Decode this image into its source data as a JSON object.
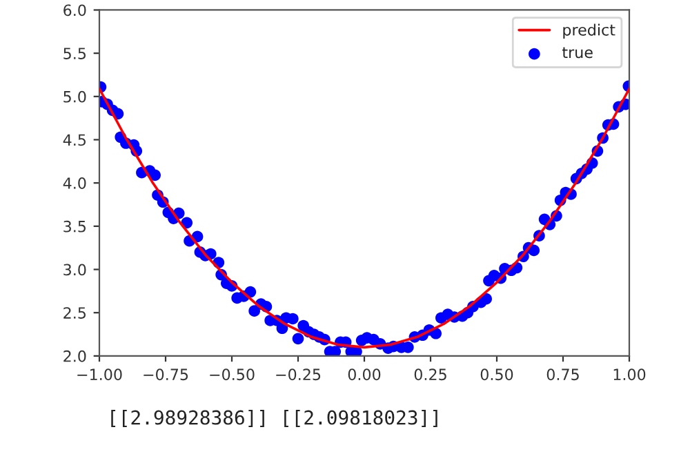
{
  "chart_data": {
    "type": "scatter",
    "xlim": [
      -1.0,
      1.0
    ],
    "ylim": [
      2.0,
      6.0
    ],
    "xticks": [
      {
        "value": -1.0,
        "label": "−1.00"
      },
      {
        "value": -0.75,
        "label": "−0.75"
      },
      {
        "value": -0.5,
        "label": "−0.50"
      },
      {
        "value": -0.25,
        "label": "−0.25"
      },
      {
        "value": 0.0,
        "label": "0.00"
      },
      {
        "value": 0.25,
        "label": "0.25"
      },
      {
        "value": 0.5,
        "label": "0.50"
      },
      {
        "value": 0.75,
        "label": "0.75"
      },
      {
        "value": 1.0,
        "label": "1.00"
      }
    ],
    "yticks": [
      {
        "value": 2.0,
        "label": "2.0"
      },
      {
        "value": 2.5,
        "label": "2.5"
      },
      {
        "value": 3.0,
        "label": "3.0"
      },
      {
        "value": 3.5,
        "label": "3.5"
      },
      {
        "value": 4.0,
        "label": "4.0"
      },
      {
        "value": 4.5,
        "label": "4.5"
      },
      {
        "value": 5.0,
        "label": "5.0"
      },
      {
        "value": 5.5,
        "label": "5.5"
      },
      {
        "value": 6.0,
        "label": "6.0"
      }
    ],
    "grid": false,
    "legend": "top right",
    "series": [
      {
        "name": "predict",
        "type": "line",
        "color": "#ff0000",
        "marker": "none",
        "x": [
          -1.0,
          -0.9,
          -0.8,
          -0.7,
          -0.6,
          -0.5,
          -0.4,
          -0.3,
          -0.2,
          -0.1,
          0.0,
          0.1,
          0.2,
          0.3,
          0.4,
          0.5,
          0.6,
          0.7,
          0.8,
          0.9,
          1.0
        ],
        "values": [
          5.09,
          4.52,
          4.01,
          3.56,
          3.17,
          2.85,
          2.58,
          2.37,
          2.22,
          2.13,
          2.1,
          2.13,
          2.22,
          2.37,
          2.58,
          2.85,
          3.17,
          3.56,
          4.01,
          4.52,
          5.09
        ]
      },
      {
        "name": "true",
        "color": "#0000ff",
        "marker": "circle",
        "x": [
          -0.995,
          -0.99,
          -0.97,
          -0.95,
          -0.93,
          -0.92,
          -0.9,
          -0.87,
          -0.86,
          -0.84,
          -0.81,
          -0.79,
          -0.78,
          -0.76,
          -0.74,
          -0.72,
          -0.7,
          -0.67,
          -0.66,
          -0.63,
          -0.62,
          -0.6,
          -0.58,
          -0.55,
          -0.54,
          -0.52,
          -0.5,
          -0.48,
          -0.455,
          -0.43,
          -0.415,
          -0.39,
          -0.37,
          -0.355,
          -0.33,
          -0.31,
          -0.295,
          -0.27,
          -0.25,
          -0.23,
          -0.21,
          -0.19,
          -0.17,
          -0.15,
          -0.13,
          -0.11,
          -0.09,
          -0.07,
          -0.05,
          -0.03,
          -0.01,
          0.01,
          0.035,
          0.06,
          0.09,
          0.11,
          0.14,
          0.165,
          0.19,
          0.22,
          0.245,
          0.27,
          0.29,
          0.315,
          0.34,
          0.37,
          0.39,
          0.41,
          0.44,
          0.46,
          0.47,
          0.49,
          0.515,
          0.53,
          0.555,
          0.575,
          0.6,
          0.62,
          0.64,
          0.66,
          0.68,
          0.7,
          0.725,
          0.74,
          0.76,
          0.78,
          0.8,
          0.82,
          0.84,
          0.86,
          0.88,
          0.9,
          0.92,
          0.94,
          0.96,
          0.985,
          0.997
        ],
        "values": [
          5.11,
          4.94,
          4.91,
          4.84,
          4.8,
          4.53,
          4.46,
          4.44,
          4.37,
          4.12,
          4.14,
          4.09,
          3.86,
          3.78,
          3.66,
          3.59,
          3.65,
          3.54,
          3.33,
          3.38,
          3.2,
          3.16,
          3.18,
          3.08,
          2.94,
          2.84,
          2.81,
          2.67,
          2.69,
          2.74,
          2.52,
          2.6,
          2.57,
          2.41,
          2.41,
          2.32,
          2.44,
          2.43,
          2.2,
          2.35,
          2.28,
          2.25,
          2.22,
          2.19,
          2.05,
          2.05,
          2.16,
          2.16,
          2.05,
          2.05,
          2.18,
          2.21,
          2.19,
          2.14,
          2.09,
          2.11,
          2.1,
          2.1,
          2.22,
          2.24,
          2.3,
          2.26,
          2.44,
          2.48,
          2.45,
          2.46,
          2.5,
          2.57,
          2.62,
          2.66,
          2.87,
          2.93,
          2.9,
          3.01,
          2.99,
          3.02,
          3.15,
          3.25,
          3.22,
          3.39,
          3.58,
          3.52,
          3.62,
          3.8,
          3.89,
          3.87,
          4.05,
          4.11,
          4.16,
          4.23,
          4.37,
          4.52,
          4.67,
          4.68,
          4.88,
          4.91,
          5.12
        ]
      }
    ],
    "annotations": [
      "[[2.98928386]] [[2.09818023]]"
    ]
  }
}
